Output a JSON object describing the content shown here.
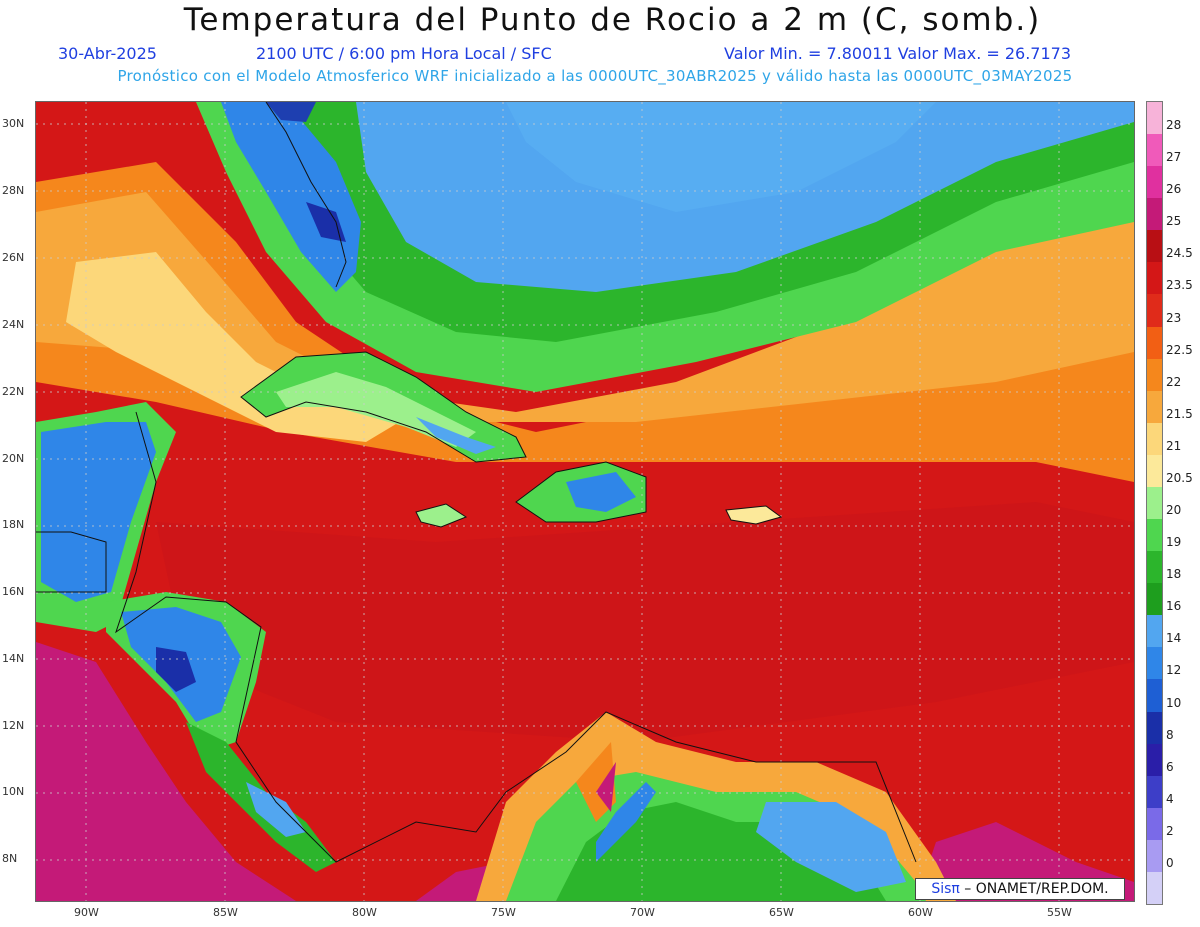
{
  "title": "Temperatura del Punto de Rocio a 2 m (C, somb.)",
  "subtitle": {
    "date": "30-Abr-2025",
    "time": "2100 UTC / 6:00 pm Hora Local / SFC",
    "minmax": "Valor Min. = 7.80011  Valor Max. = 26.7173"
  },
  "model_line": "Pronóstico con el Modelo Atmosferico WRF inicializado a las 0000UTC_30ABR2025 y válido hasta las  0000UTC_03MAY2025",
  "lat_labels": [
    "30N",
    "28N",
    "26N",
    "24N",
    "22N",
    "20N",
    "18N",
    "16N",
    "14N",
    "12N",
    "10N",
    "8N"
  ],
  "lon_labels": [
    "90W",
    "85W",
    "80W",
    "75W",
    "70W",
    "65W",
    "60W",
    "55W"
  ],
  "colorbar": {
    "labels": [
      "28",
      "27",
      "26",
      "25",
      "24.5",
      "23.5",
      "23",
      "22.5",
      "22",
      "21.5",
      "21",
      "20.5",
      "20",
      "19",
      "18",
      "16",
      "14",
      "12",
      "10",
      "8",
      "6",
      "4",
      "2",
      "0"
    ],
    "colors": [
      "#f7b3d9",
      "#f05aba",
      "#e0309f",
      "#c41a78",
      "#b80f14",
      "#d41717",
      "#e02b1a",
      "#f25f14",
      "#f5871c",
      "#f7a83c",
      "#fcd77a",
      "#fce99a",
      "#9cf08c",
      "#4fd64f",
      "#2cb52c",
      "#1e9e1e",
      "#52a6f0",
      "#2f86e8",
      "#1e5fd4",
      "#1a2fa8",
      "#2a1ea8",
      "#3d3ec8",
      "#7a6ae8",
      "#a89bf2",
      "#d4d0f7"
    ]
  },
  "credit": {
    "brand": "Sisπ",
    "text": " – ONAMET/REP.DOM."
  },
  "map_legend_values": {
    "min": 7.80011,
    "max": 26.7173,
    "units": "C"
  }
}
